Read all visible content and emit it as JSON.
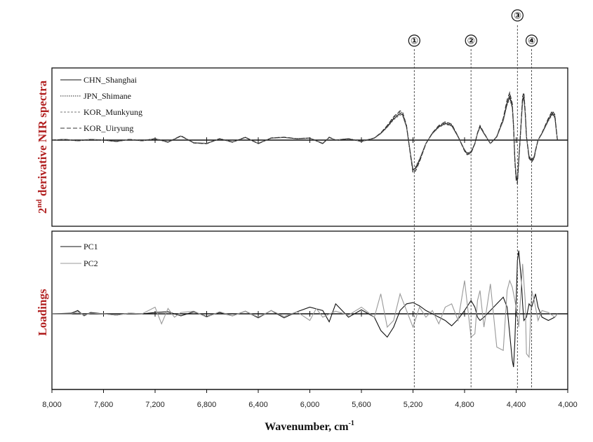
{
  "chart_data": [
    {
      "type": "line",
      "panel": "top",
      "ylabel_main": "2",
      "ylabel_sup": "nd",
      "ylabel_rest": " derivative NIR spectra",
      "xlim": [
        8000,
        4000
      ],
      "x_reversed": true,
      "x_ticks": [
        "8,000",
        "7,600",
        "7,200",
        "6,800",
        "6,400",
        "6,000",
        "5,600",
        "5,200",
        "4,800",
        "4,400",
        "4,000"
      ],
      "legend": "top-left",
      "series": [
        {
          "name": "CHN_Shanghai",
          "style": "solid",
          "color": "#111111"
        },
        {
          "name": "JPN_Shimane",
          "style": "dotted",
          "color": "#222222"
        },
        {
          "name": "KOR_Munkyung",
          "style": "dashed-short",
          "color": "#777777"
        },
        {
          "name": "KOR_Uiryung",
          "style": "dashed",
          "color": "#333333"
        }
      ],
      "profile": {
        "x": [
          8000,
          7900,
          7800,
          7700,
          7600,
          7500,
          7400,
          7300,
          7200,
          7100,
          7000,
          6900,
          6800,
          6700,
          6600,
          6500,
          6400,
          6300,
          6200,
          6100,
          6000,
          5900,
          5850,
          5800,
          5700,
          5600,
          5500,
          5450,
          5400,
          5350,
          5300,
          5280,
          5250,
          5220,
          5200,
          5180,
          5150,
          5100,
          5050,
          5000,
          4950,
          4900,
          4850,
          4800,
          4780,
          4750,
          4720,
          4700,
          4680,
          4650,
          4600,
          4550,
          4500,
          4470,
          4450,
          4430,
          4420,
          4410,
          4400,
          4390,
          4380,
          4360,
          4350,
          4340,
          4330,
          4320,
          4300,
          4280,
          4260,
          4250,
          4230,
          4200,
          4150,
          4120,
          4100,
          4080
        ],
        "y": [
          0,
          0.01,
          -0.01,
          0.01,
          0,
          -0.02,
          0.01,
          -0.01,
          0.02,
          -0.03,
          0.06,
          -0.04,
          -0.05,
          0.02,
          -0.03,
          0.04,
          -0.05,
          0.03,
          0.04,
          0.02,
          0.03,
          -0.05,
          0.04,
          0,
          0.02,
          -0.02,
          0.03,
          0.1,
          0.2,
          0.32,
          0.4,
          0.38,
          0.2,
          -0.2,
          -0.45,
          -0.42,
          -0.3,
          -0.05,
          0.1,
          0.2,
          0.25,
          0.22,
          0.05,
          -0.15,
          -0.2,
          -0.18,
          -0.05,
          0.1,
          0.2,
          0.1,
          -0.05,
          0.05,
          0.3,
          0.55,
          0.65,
          0.5,
          0.2,
          -0.3,
          -0.55,
          -0.6,
          -0.3,
          0.3,
          0.6,
          0.65,
          0.4,
          0.05,
          -0.25,
          -0.3,
          -0.25,
          -0.15,
          0,
          0.1,
          0.3,
          0.4,
          0.35,
          0
        ],
        "variation": [
          1.0,
          1.06,
          0.95,
          1.1
        ]
      }
    },
    {
      "type": "line",
      "panel": "bottom",
      "ylabel": "Loadings",
      "xlim": [
        8000,
        4000
      ],
      "x_reversed": true,
      "legend": "top-left",
      "series": [
        {
          "name": "PC1",
          "style": "solid",
          "color": "#111111",
          "x": [
            8000,
            7850,
            7800,
            7750,
            7700,
            7600,
            7500,
            7400,
            7300,
            7200,
            7100,
            7000,
            6900,
            6800,
            6700,
            6600,
            6500,
            6400,
            6300,
            6200,
            6100,
            6000,
            5900,
            5850,
            5800,
            5700,
            5600,
            5500,
            5450,
            5400,
            5350,
            5300,
            5250,
            5200,
            5150,
            5100,
            5050,
            5000,
            4950,
            4900,
            4850,
            4800,
            4750,
            4720,
            4700,
            4680,
            4650,
            4600,
            4550,
            4500,
            4470,
            4450,
            4430,
            4420,
            4410,
            4400,
            4390,
            4380,
            4360,
            4350,
            4340,
            4320,
            4300,
            4280,
            4250,
            4230,
            4200,
            4150,
            4100,
            4080
          ],
          "y": [
            0,
            0.01,
            0.05,
            -0.03,
            0.02,
            0,
            -0.02,
            0.01,
            0,
            0.02,
            0.03,
            -0.03,
            0.03,
            -0.04,
            0.02,
            -0.03,
            0.04,
            -0.06,
            0.05,
            -0.06,
            0.03,
            0.1,
            0.05,
            -0.12,
            0.15,
            -0.05,
            0.06,
            -0.05,
            -0.25,
            -0.35,
            -0.2,
            0.05,
            0.15,
            0.17,
            0.12,
            0.05,
            0,
            -0.05,
            -0.1,
            -0.18,
            -0.08,
            0.05,
            0.2,
            0.1,
            -0.05,
            -0.1,
            -0.05,
            0.05,
            0.15,
            0.25,
            0.1,
            -0.3,
            -0.7,
            -0.8,
            -0.4,
            0.2,
            0.8,
            0.95,
            0.5,
            0.15,
            -0.1,
            -0.05,
            0.15,
            0.1,
            0.3,
            0.1,
            -0.05,
            -0.1,
            -0.05,
            0
          ]
        },
        {
          "name": "PC2",
          "style": "solid",
          "color": "#999999",
          "x": [
            8000,
            7850,
            7800,
            7750,
            7700,
            7600,
            7500,
            7400,
            7300,
            7200,
            7150,
            7100,
            7050,
            7000,
            6900,
            6800,
            6700,
            6600,
            6500,
            6400,
            6300,
            6200,
            6100,
            6000,
            5950,
            5900,
            5800,
            5700,
            5600,
            5500,
            5450,
            5400,
            5350,
            5300,
            5250,
            5200,
            5150,
            5100,
            5050,
            5000,
            4950,
            4900,
            4850,
            4800,
            4750,
            4720,
            4700,
            4680,
            4650,
            4600,
            4550,
            4500,
            4470,
            4450,
            4430,
            4400,
            4380,
            4350,
            4330,
            4320,
            4300,
            4280,
            4260,
            4250,
            4230,
            4200,
            4150,
            4100,
            4080
          ],
          "y": [
            0,
            0,
            0.03,
            -0.02,
            0.01,
            0,
            -0.02,
            0.01,
            0,
            0.1,
            -0.15,
            0.08,
            -0.05,
            0.02,
            0.04,
            -0.05,
            0.03,
            -0.03,
            0.04,
            -0.05,
            0.05,
            -0.04,
            0.03,
            -0.1,
            0.08,
            -0.05,
            0.04,
            -0.02,
            0.1,
            -0.05,
            0.3,
            -0.2,
            -0.1,
            0.3,
            0.05,
            -0.2,
            0.1,
            -0.05,
            0.05,
            -0.15,
            0.1,
            0.15,
            -0.1,
            0.5,
            -0.35,
            -0.3,
            0.2,
            0.35,
            -0.2,
            0.45,
            -0.5,
            -0.55,
            0.35,
            0.5,
            0.4,
            0.1,
            -0.2,
            0.75,
            0.2,
            -0.6,
            -0.65,
            0.35,
            0.2,
            0.1,
            -0.1,
            0.05,
            0.02,
            -0.05,
            0
          ]
        }
      ]
    }
  ],
  "x_axis": {
    "ticks": [
      "8,000",
      "7,600",
      "7,200",
      "6,800",
      "6,400",
      "6,000",
      "5,600",
      "5,200",
      "4,800",
      "4,400",
      "4,000"
    ],
    "title_main": "Wavenumber,  cm",
    "title_sup": "-1"
  },
  "markers": [
    {
      "label": "①",
      "x": 5190
    },
    {
      "label": "②",
      "x": 4750
    },
    {
      "label": "③",
      "x": 4390
    },
    {
      "label": "④",
      "x": 4280
    }
  ]
}
